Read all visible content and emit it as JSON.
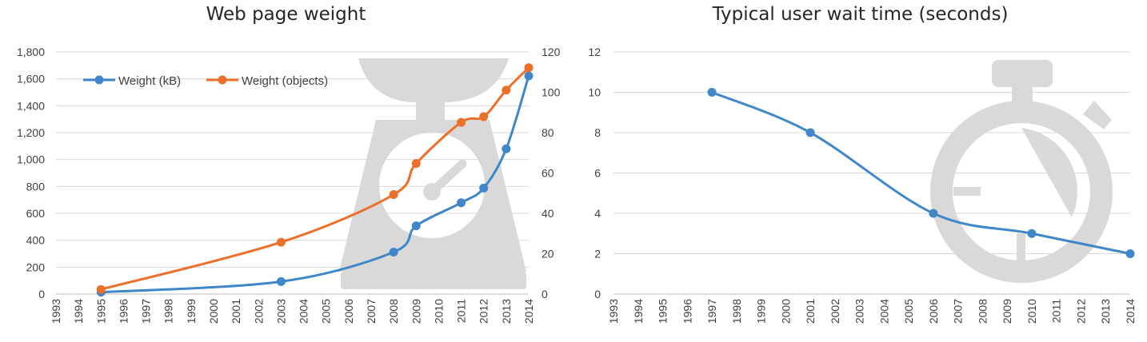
{
  "chart_data": [
    {
      "type": "line",
      "title": "Web page weight",
      "x": [
        1995,
        2003,
        2008,
        2009,
        2011,
        2012,
        2013,
        2014
      ],
      "x_ticks": [
        1993,
        1994,
        1995,
        1996,
        1997,
        1998,
        1999,
        2000,
        2001,
        2002,
        2003,
        2004,
        2005,
        2006,
        2007,
        2008,
        2009,
        2010,
        2011,
        2012,
        2013,
        2014
      ],
      "series": [
        {
          "name": "Weight (kB)",
          "axis": "left",
          "color": "#3f87c9",
          "values": [
            14,
            93,
            312,
            507,
            679,
            788,
            1080,
            1622
          ]
        },
        {
          "name": "Weight (objects)",
          "axis": "right",
          "color": "#ec6f2a",
          "values": [
            2.3,
            25.7,
            49.3,
            64.7,
            85.1,
            87.9,
            101.1,
            112.2
          ]
        }
      ],
      "ylim_left": [
        0,
        1800
      ],
      "yticks_left": [
        "0",
        "200",
        "400",
        "600",
        "800",
        "1,000",
        "1,200",
        "1,400",
        "1,600",
        "1,800"
      ],
      "ylim_right": [
        0,
        120
      ],
      "yticks_right": [
        "0",
        "20",
        "40",
        "60",
        "80",
        "100",
        "120"
      ],
      "legend_position": "top-left",
      "grid": true,
      "background_icon": "kitchen-scale-icon"
    },
    {
      "type": "line",
      "title": "Typical user wait time (seconds)",
      "x": [
        1997,
        2001,
        2006,
        2010,
        2014
      ],
      "x_ticks": [
        1993,
        1994,
        1995,
        1996,
        1997,
        1998,
        1999,
        2000,
        2001,
        2002,
        2003,
        2004,
        2005,
        2006,
        2007,
        2008,
        2009,
        2010,
        2011,
        2012,
        2013,
        2014
      ],
      "series": [
        {
          "color": "#3f87c9",
          "values": [
            10,
            8,
            4,
            3,
            2
          ]
        }
      ],
      "ylim": [
        0,
        12
      ],
      "yticks": [
        "0",
        "2",
        "4",
        "6",
        "8",
        "10",
        "12"
      ],
      "grid": true,
      "background_icon": "stopwatch-icon"
    }
  ]
}
